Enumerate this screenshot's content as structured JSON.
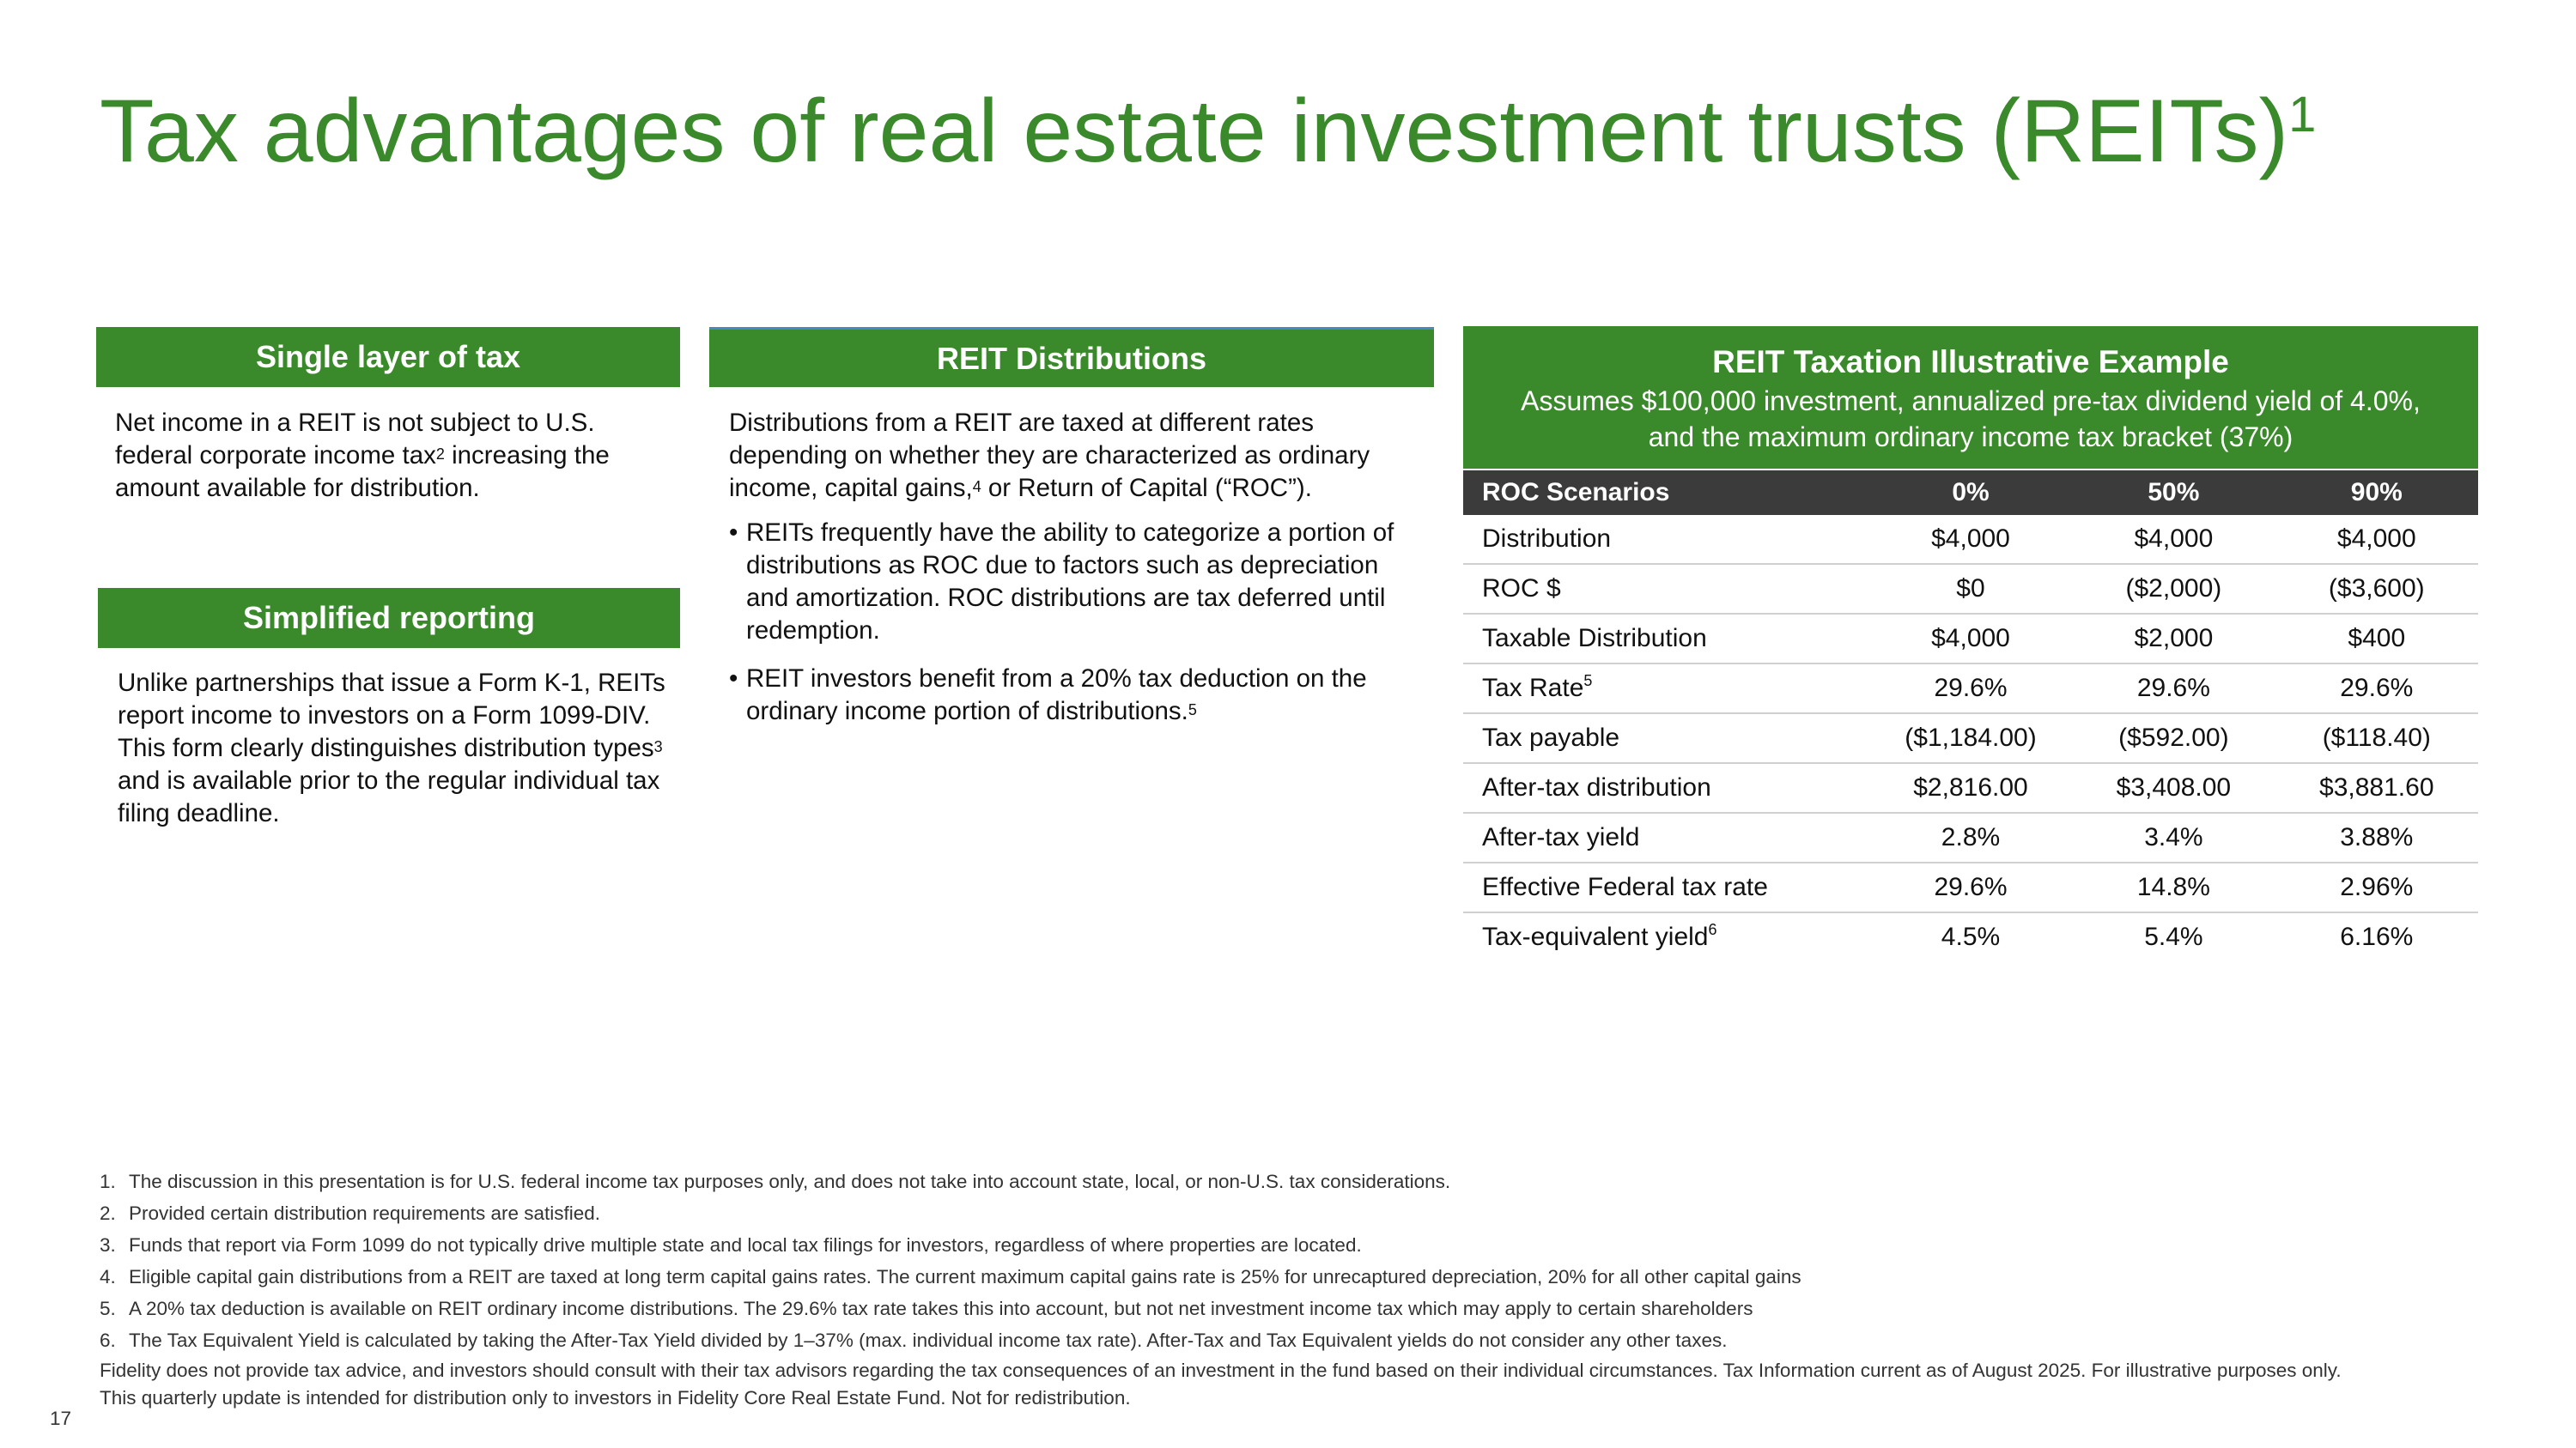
{
  "title": {
    "text": "Tax advantages of real estate investment trusts (REITs)",
    "sup": "1"
  },
  "single_layer": {
    "heading": "Single layer of tax",
    "text_a": "Net income in a REIT is not subject to U.S. federal corporate income tax",
    "sup": "2",
    "text_b": " increasing the amount available for distribution."
  },
  "simplified": {
    "heading": "Simplified reporting",
    "text_a": "Unlike partnerships that issue a Form K-1, REITs report income to investors on a Form 1099-DIV. This form clearly distinguishes distribution types",
    "sup": "3",
    "text_b": " and is available prior to the regular individual tax filing deadline."
  },
  "distributions": {
    "heading": "REIT Distributions",
    "intro_a": "Distributions from a REIT are taxed at different rates depending on whether they are characterized as ordinary income, capital gains,",
    "intro_sup": "4",
    "intro_b": " or Return of Capital (“ROC”).",
    "bullet1": "REITs frequently have the ability to categorize a portion of distributions as ROC due to factors such as depreciation and amortization. ROC distributions are tax deferred until redemption.",
    "bullet2": "REIT investors benefit from a 20% tax deduction on the ordinary income portion of distributions.",
    "bullet2_sup": "5"
  },
  "example": {
    "title": "REIT Taxation Illustrative Example",
    "subtitle": "Assumes $100,000 investment, annualized pre-tax dividend yield of 4.0%, and the maximum ordinary income tax bracket (37%)",
    "columns": [
      "ROC Scenarios",
      "0%",
      "50%",
      "90%"
    ],
    "rows": [
      {
        "label": "Distribution",
        "sup": "",
        "values": [
          "$4,000",
          "$4,000",
          "$4,000"
        ]
      },
      {
        "label": "ROC $",
        "sup": "",
        "values": [
          "$0",
          "($2,000)",
          "($3,600)"
        ]
      },
      {
        "label": "Taxable Distribution",
        "sup": "",
        "values": [
          "$4,000",
          "$2,000",
          "$400"
        ]
      },
      {
        "label": "Tax Rate",
        "sup": "5",
        "values": [
          "29.6%",
          "29.6%",
          "29.6%"
        ]
      },
      {
        "label": "Tax payable",
        "sup": "",
        "values": [
          "($1,184.00)",
          "($592.00)",
          "($118.40)"
        ]
      },
      {
        "label": "After-tax distribution",
        "sup": "",
        "values": [
          "$2,816.00",
          "$3,408.00",
          "$3,881.60"
        ]
      },
      {
        "label": "After-tax yield",
        "sup": "",
        "values": [
          "2.8%",
          "3.4%",
          "3.88%"
        ]
      },
      {
        "label": "Effective Federal tax rate",
        "sup": "",
        "values": [
          "29.6%",
          "14.8%",
          "2.96%"
        ]
      },
      {
        "label": "Tax-equivalent yield",
        "sup": "6",
        "values": [
          "4.5%",
          "5.4%",
          "6.16%"
        ]
      }
    ]
  },
  "footnotes": [
    {
      "num": "1.",
      "text": "The discussion in this presentation is for U.S. federal income tax purposes only, and does not take into account state, local, or non-U.S. tax considerations."
    },
    {
      "num": "2.",
      "text": "Provided certain distribution requirements are satisfied."
    },
    {
      "num": "3.",
      "text": "Funds that report via Form 1099 do not typically drive multiple state and local tax filings for investors, regardless of where properties are located."
    },
    {
      "num": "4.",
      "text": "Eligible capital gain distributions from a REIT are taxed at long term capital gains rates. The current maximum capital gains rate is 25% for unrecaptured depreciation, 20% for all other capital gains"
    },
    {
      "num": "5.",
      "text": "A 20% tax deduction is available on REIT ordinary income distributions. The 29.6% tax rate takes this into account, but not net investment income tax which may apply to certain shareholders"
    },
    {
      "num": "6.",
      "text": "The Tax Equivalent Yield is calculated by taking the After-Tax Yield divided by 1–37% (max. individual income tax rate). After-Tax and Tax Equivalent yields do not consider any other taxes."
    }
  ],
  "disclaimer": "Fidelity does not provide tax advice, and investors should consult with their tax advisors regarding the tax consequences of an investment in the fund based on their individual  circumstances. Tax Information current as of August 2025. For illustrative purposes only.",
  "distribution_note": "This quarterly update is intended for distribution only to investors in Fidelity Core Real Estate Fund. Not for redistribution.",
  "page_number": "17"
}
